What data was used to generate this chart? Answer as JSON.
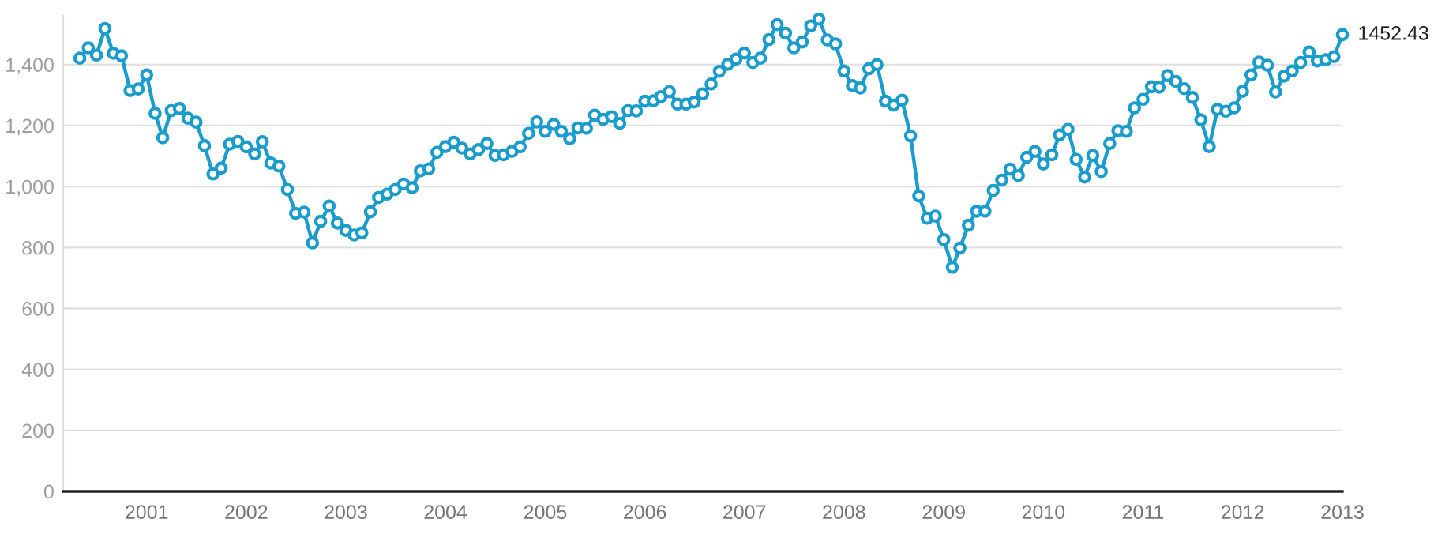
{
  "chart_data": {
    "type": "line",
    "x": [
      "2000-05",
      "2000-06",
      "2000-07",
      "2000-08",
      "2000-09",
      "2000-10",
      "2000-11",
      "2000-12",
      "2001-01",
      "2001-02",
      "2001-03",
      "2001-04",
      "2001-05",
      "2001-06",
      "2001-07",
      "2001-08",
      "2001-09",
      "2001-10",
      "2001-11",
      "2001-12",
      "2002-01",
      "2002-02",
      "2002-03",
      "2002-04",
      "2002-05",
      "2002-06",
      "2002-07",
      "2002-08",
      "2002-09",
      "2002-10",
      "2002-11",
      "2002-12",
      "2003-01",
      "2003-02",
      "2003-03",
      "2003-04",
      "2003-05",
      "2003-06",
      "2003-07",
      "2003-08",
      "2003-09",
      "2003-10",
      "2003-11",
      "2003-12",
      "2004-01",
      "2004-02",
      "2004-03",
      "2004-04",
      "2004-05",
      "2004-06",
      "2004-07",
      "2004-08",
      "2004-09",
      "2004-10",
      "2004-11",
      "2004-12",
      "2005-01",
      "2005-02",
      "2005-03",
      "2005-04",
      "2005-05",
      "2005-06",
      "2005-07",
      "2005-08",
      "2005-09",
      "2005-10",
      "2005-11",
      "2005-12",
      "2006-01",
      "2006-02",
      "2006-03",
      "2006-04",
      "2006-05",
      "2006-06",
      "2006-07",
      "2006-08",
      "2006-09",
      "2006-10",
      "2006-11",
      "2006-12",
      "2007-01",
      "2007-02",
      "2007-03",
      "2007-04",
      "2007-05",
      "2007-06",
      "2007-07",
      "2007-08",
      "2007-09",
      "2007-10",
      "2007-11",
      "2007-12",
      "2008-01",
      "2008-02",
      "2008-03",
      "2008-04",
      "2008-05",
      "2008-06",
      "2008-07",
      "2008-08",
      "2008-09",
      "2008-10",
      "2008-11",
      "2008-12",
      "2009-01",
      "2009-02",
      "2009-03",
      "2009-04",
      "2009-05",
      "2009-06",
      "2009-07",
      "2009-08",
      "2009-09",
      "2009-10",
      "2009-11",
      "2009-12",
      "2010-01",
      "2010-02",
      "2010-03",
      "2010-04",
      "2010-05",
      "2010-06",
      "2010-07",
      "2010-08",
      "2010-09",
      "2010-10",
      "2010-11",
      "2010-12",
      "2011-01",
      "2011-02",
      "2011-03",
      "2011-04",
      "2011-05",
      "2011-06",
      "2011-07",
      "2011-08",
      "2011-09",
      "2011-10",
      "2011-11",
      "2011-12",
      "2012-01",
      "2012-02",
      "2012-03",
      "2012-04",
      "2012-05",
      "2012-06",
      "2012-07",
      "2012-08",
      "2012-09",
      "2012-10",
      "2012-11",
      "2012-12",
      "2013-01"
    ],
    "series": [
      {
        "color": "#1a9ccc",
        "values": [
          1421,
          1455,
          1431,
          1518,
          1437,
          1429,
          1315,
          1320,
          1366,
          1240,
          1160,
          1249,
          1256,
          1224,
          1211,
          1134,
          1041,
          1060,
          1139,
          1148,
          1130,
          1107,
          1147,
          1077,
          1067,
          990,
          912,
          916,
          815,
          886,
          936,
          880,
          856,
          841,
          848,
          917,
          964,
          975,
          990,
          1008,
          996,
          1051,
          1058,
          1112,
          1131,
          1145,
          1126,
          1107,
          1121,
          1141,
          1102,
          1104,
          1115,
          1130,
          1174,
          1212,
          1181,
          1204,
          1181,
          1157,
          1192,
          1191,
          1234,
          1220,
          1229,
          1207,
          1249,
          1248,
          1280,
          1281,
          1295,
          1311,
          1270,
          1270,
          1277,
          1304,
          1336,
          1378,
          1401,
          1418,
          1438,
          1407,
          1421,
          1482,
          1531,
          1503,
          1455,
          1474,
          1527,
          1549,
          1481,
          1468,
          1379,
          1331,
          1323,
          1386,
          1400,
          1280,
          1267,
          1283,
          1166,
          969,
          896,
          903,
          826,
          735,
          798,
          873,
          919,
          919,
          987,
          1021,
          1057,
          1036,
          1096,
          1115,
          1074,
          1104,
          1169,
          1187,
          1089,
          1031,
          1102,
          1049,
          1141,
          1183,
          1181,
          1258,
          1286,
          1327,
          1326,
          1364,
          1345,
          1321,
          1292,
          1219,
          1131,
          1253,
          1247,
          1258,
          1312,
          1366,
          1408,
          1398,
          1310,
          1362,
          1379,
          1407,
          1441,
          1412,
          1416,
          1426,
          1498
        ]
      }
    ],
    "xlim": [
      "2000-03-01",
      "2013-01-01"
    ],
    "xticks": [
      {
        "value": "2001",
        "label": "2001"
      },
      {
        "value": "2002",
        "label": "2002"
      },
      {
        "value": "2003",
        "label": "2003"
      },
      {
        "value": "2004",
        "label": "2004"
      },
      {
        "value": "2005",
        "label": "2005"
      },
      {
        "value": "2006",
        "label": "2006"
      },
      {
        "value": "2007",
        "label": "2007"
      },
      {
        "value": "2008",
        "label": "2008"
      },
      {
        "value": "2009",
        "label": "2009"
      },
      {
        "value": "2010",
        "label": "2010"
      },
      {
        "value": "2011",
        "label": "2011"
      },
      {
        "value": "2012",
        "label": "2012"
      },
      {
        "value": "2013",
        "label": "2013"
      }
    ],
    "ylim": [
      0,
      1560
    ],
    "yticks": [
      0,
      200,
      400,
      600,
      800,
      {
        "value": 1000,
        "label": "1,000"
      },
      {
        "value": 1200,
        "label": "1,200"
      },
      {
        "value": 1400,
        "label": "1,400"
      }
    ],
    "grid": "y",
    "marker": "circle",
    "line_style": "solid",
    "annotations": [
      "1452.43"
    ]
  }
}
